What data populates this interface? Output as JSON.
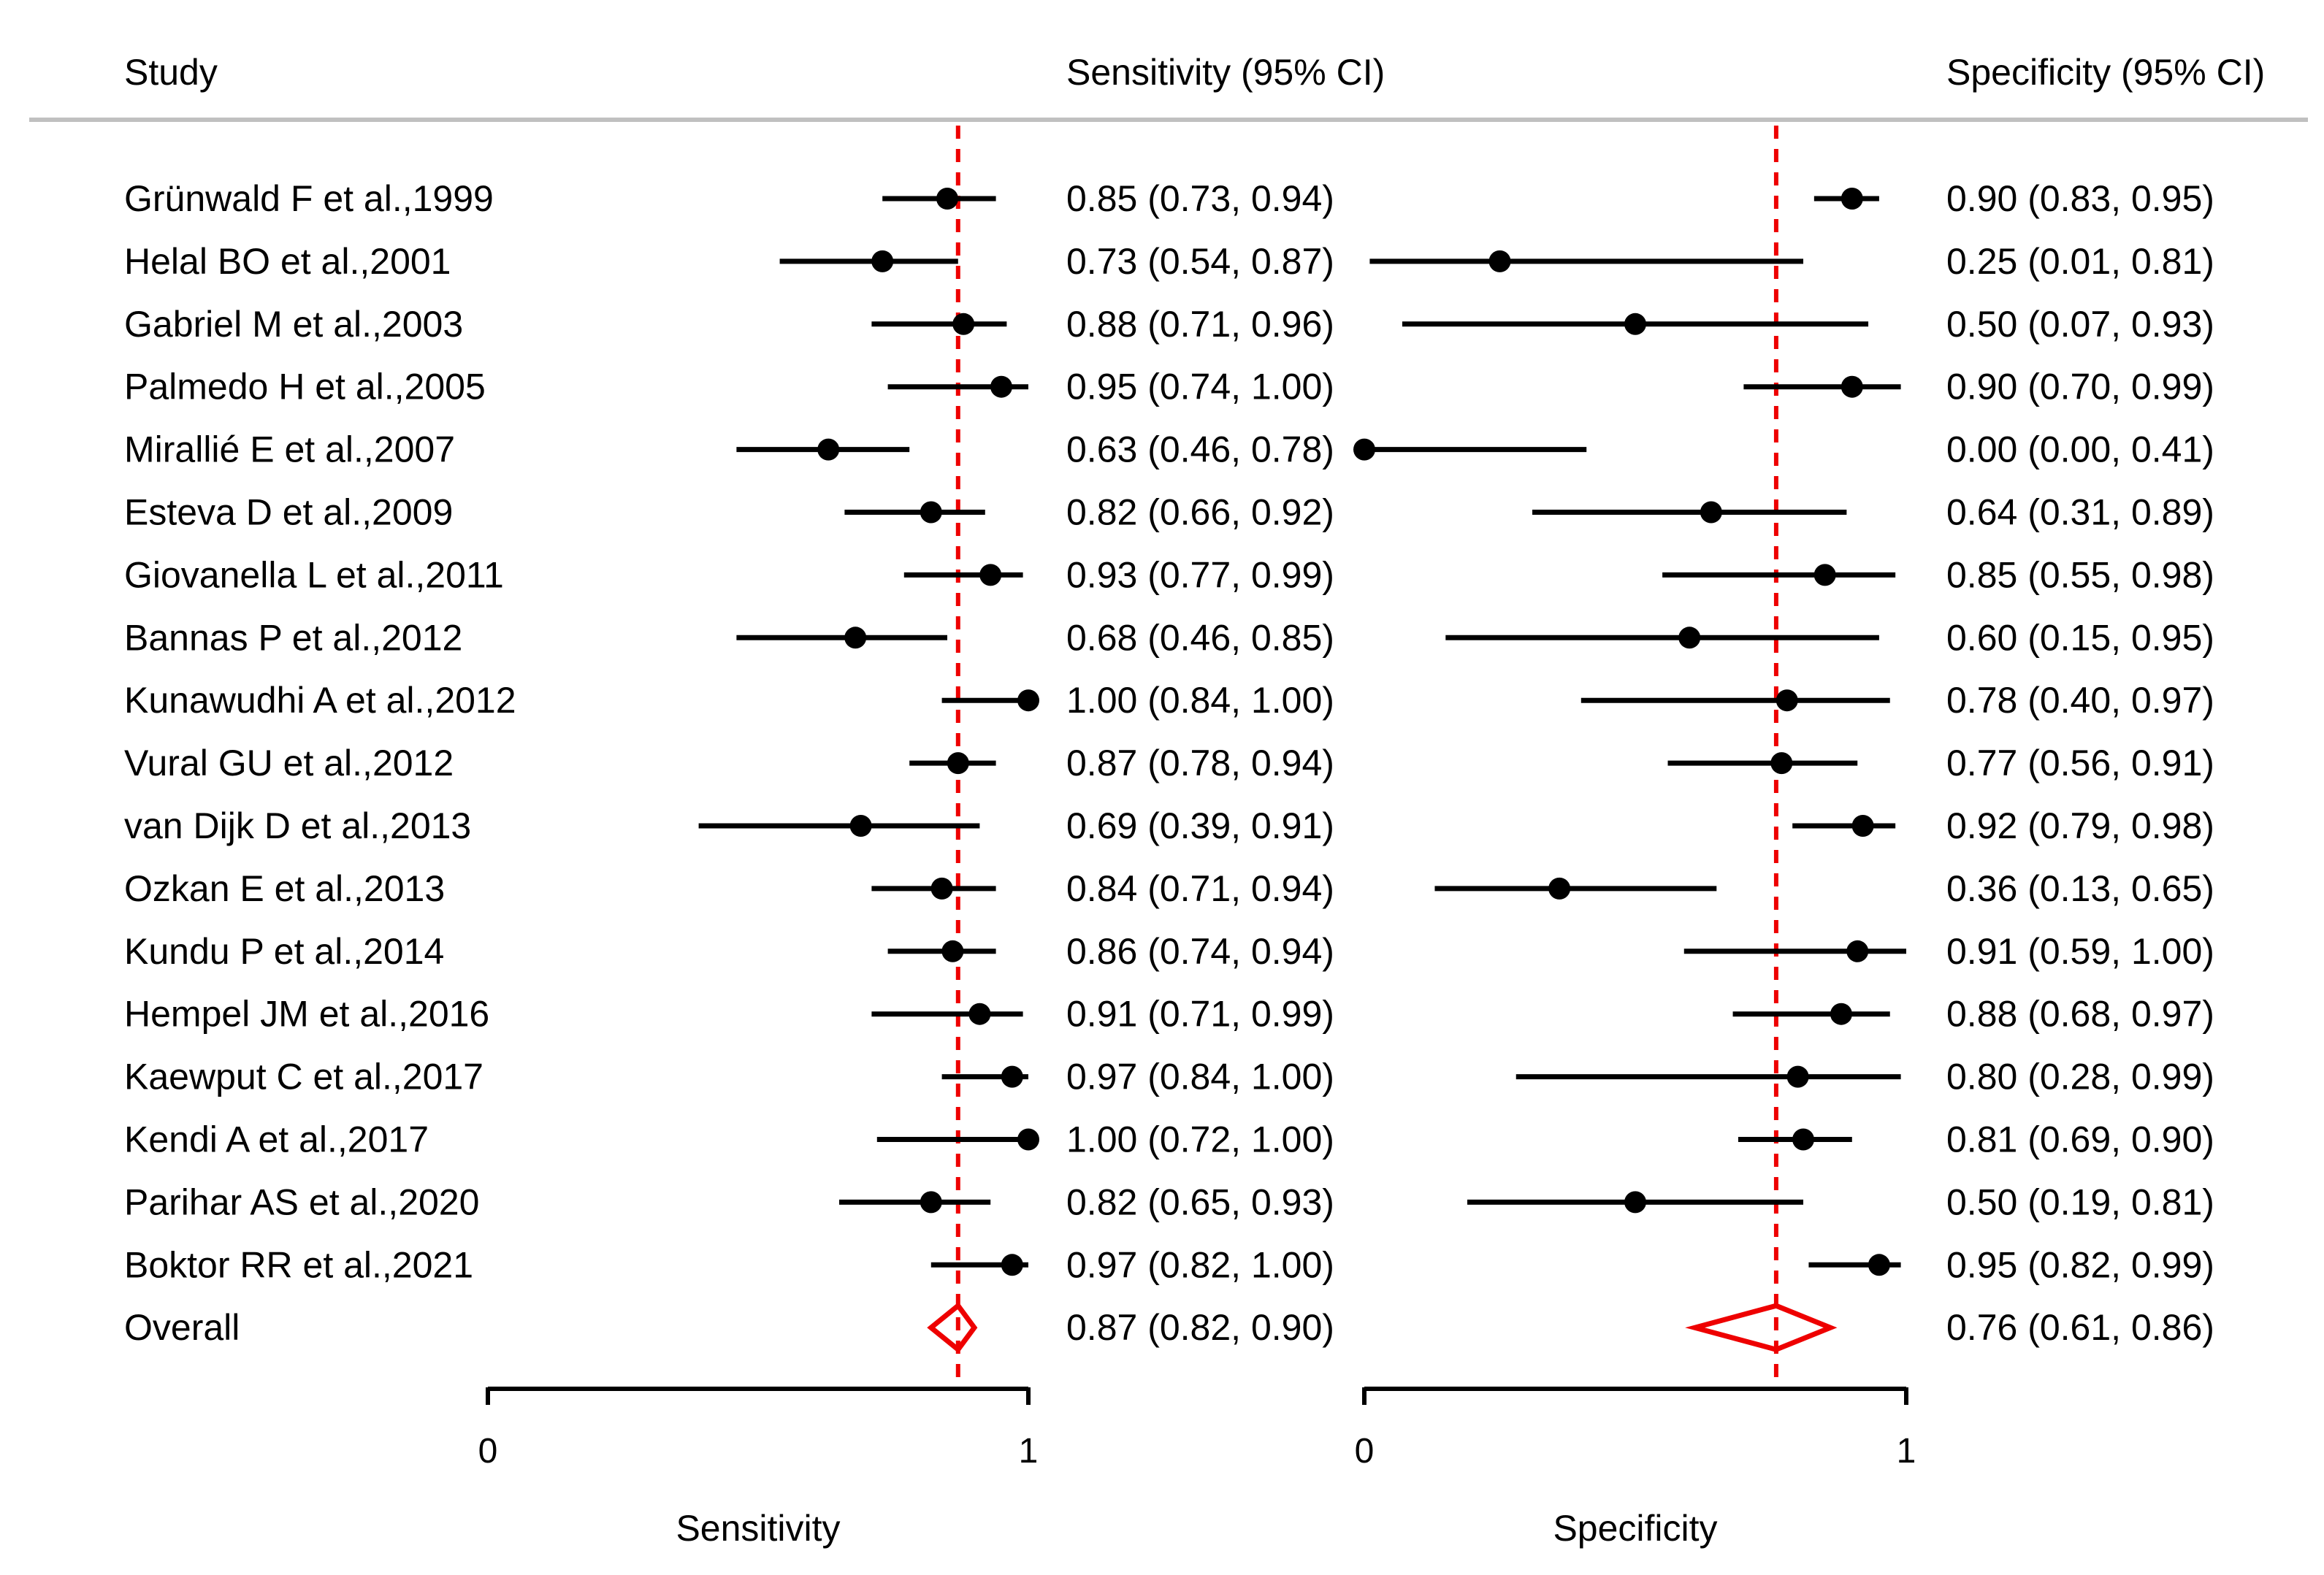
{
  "chart_data": {
    "type": "forest",
    "headers": {
      "study": "Study",
      "sensitivity": "Sensitivity (95% CI)",
      "specificity": "Specificity (95% CI)"
    },
    "studies": [
      {
        "name": "Grünwald F et al.,1999",
        "sens": 0.85,
        "sens_lo": 0.73,
        "sens_hi": 0.94,
        "sens_label": "0.85 (0.73, 0.94)",
        "spec": 0.9,
        "spec_lo": 0.83,
        "spec_hi": 0.95,
        "spec_label": "0.90 (0.83, 0.95)"
      },
      {
        "name": "Helal BO et al.,2001",
        "sens": 0.73,
        "sens_lo": 0.54,
        "sens_hi": 0.87,
        "sens_label": "0.73 (0.54, 0.87)",
        "spec": 0.25,
        "spec_lo": 0.01,
        "spec_hi": 0.81,
        "spec_label": "0.25 (0.01, 0.81)"
      },
      {
        "name": "Gabriel M et al.,2003",
        "sens": 0.88,
        "sens_lo": 0.71,
        "sens_hi": 0.96,
        "sens_label": "0.88 (0.71, 0.96)",
        "spec": 0.5,
        "spec_lo": 0.07,
        "spec_hi": 0.93,
        "spec_label": "0.50 (0.07, 0.93)"
      },
      {
        "name": "Palmedo H et al.,2005",
        "sens": 0.95,
        "sens_lo": 0.74,
        "sens_hi": 1.0,
        "sens_label": "0.95 (0.74, 1.00)",
        "spec": 0.9,
        "spec_lo": 0.7,
        "spec_hi": 0.99,
        "spec_label": "0.90 (0.70, 0.99)"
      },
      {
        "name": "Mirallié E et al.,2007",
        "sens": 0.63,
        "sens_lo": 0.46,
        "sens_hi": 0.78,
        "sens_label": "0.63 (0.46, 0.78)",
        "spec": 0.0,
        "spec_lo": 0.0,
        "spec_hi": 0.41,
        "spec_label": "0.00 (0.00, 0.41)"
      },
      {
        "name": "Esteva D et al.,2009",
        "sens": 0.82,
        "sens_lo": 0.66,
        "sens_hi": 0.92,
        "sens_label": "0.82 (0.66, 0.92)",
        "spec": 0.64,
        "spec_lo": 0.31,
        "spec_hi": 0.89,
        "spec_label": "0.64 (0.31, 0.89)"
      },
      {
        "name": "Giovanella L et al.,2011",
        "sens": 0.93,
        "sens_lo": 0.77,
        "sens_hi": 0.99,
        "sens_label": "0.93 (0.77, 0.99)",
        "spec": 0.85,
        "spec_lo": 0.55,
        "spec_hi": 0.98,
        "spec_label": "0.85 (0.55, 0.98)"
      },
      {
        "name": "Bannas P et al.,2012",
        "sens": 0.68,
        "sens_lo": 0.46,
        "sens_hi": 0.85,
        "sens_label": "0.68 (0.46, 0.85)",
        "spec": 0.6,
        "spec_lo": 0.15,
        "spec_hi": 0.95,
        "spec_label": "0.60 (0.15, 0.95)"
      },
      {
        "name": "Kunawudhi A et al.,2012",
        "sens": 1.0,
        "sens_lo": 0.84,
        "sens_hi": 1.0,
        "sens_label": "1.00 (0.84, 1.00)",
        "spec": 0.78,
        "spec_lo": 0.4,
        "spec_hi": 0.97,
        "spec_label": "0.78 (0.40, 0.97)"
      },
      {
        "name": "Vural GU et al.,2012",
        "sens": 0.87,
        "sens_lo": 0.78,
        "sens_hi": 0.94,
        "sens_label": "0.87 (0.78, 0.94)",
        "spec": 0.77,
        "spec_lo": 0.56,
        "spec_hi": 0.91,
        "spec_label": "0.77 (0.56, 0.91)"
      },
      {
        "name": "van Dijk D et al.,2013",
        "sens": 0.69,
        "sens_lo": 0.39,
        "sens_hi": 0.91,
        "sens_label": "0.69 (0.39, 0.91)",
        "spec": 0.92,
        "spec_lo": 0.79,
        "spec_hi": 0.98,
        "spec_label": "0.92 (0.79, 0.98)"
      },
      {
        "name": "Ozkan E et al.,2013",
        "sens": 0.84,
        "sens_lo": 0.71,
        "sens_hi": 0.94,
        "sens_label": "0.84 (0.71, 0.94)",
        "spec": 0.36,
        "spec_lo": 0.13,
        "spec_hi": 0.65,
        "spec_label": "0.36 (0.13, 0.65)"
      },
      {
        "name": "Kundu P et al.,2014",
        "sens": 0.86,
        "sens_lo": 0.74,
        "sens_hi": 0.94,
        "sens_label": "0.86 (0.74, 0.94)",
        "spec": 0.91,
        "spec_lo": 0.59,
        "spec_hi": 1.0,
        "spec_label": "0.91 (0.59, 1.00)"
      },
      {
        "name": "Hempel JM  et al.,2016",
        "sens": 0.91,
        "sens_lo": 0.71,
        "sens_hi": 0.99,
        "sens_label": "0.91 (0.71, 0.99)",
        "spec": 0.88,
        "spec_lo": 0.68,
        "spec_hi": 0.97,
        "spec_label": "0.88 (0.68, 0.97)"
      },
      {
        "name": "Kaewput C et al.,2017",
        "sens": 0.97,
        "sens_lo": 0.84,
        "sens_hi": 1.0,
        "sens_label": "0.97 (0.84, 1.00)",
        "spec": 0.8,
        "spec_lo": 0.28,
        "spec_hi": 0.99,
        "spec_label": "0.80 (0.28, 0.99)"
      },
      {
        "name": "Kendi A et al.,2017",
        "sens": 1.0,
        "sens_lo": 0.72,
        "sens_hi": 1.0,
        "sens_label": "1.00 (0.72, 1.00)",
        "spec": 0.81,
        "spec_lo": 0.69,
        "spec_hi": 0.9,
        "spec_label": "0.81 (0.69, 0.90)"
      },
      {
        "name": "Parihar AS et al.,2020",
        "sens": 0.82,
        "sens_lo": 0.65,
        "sens_hi": 0.93,
        "sens_label": "0.82 (0.65, 0.93)",
        "spec": 0.5,
        "spec_lo": 0.19,
        "spec_hi": 0.81,
        "spec_label": "0.50 (0.19, 0.81)"
      },
      {
        "name": "Boktor RR et al.,2021",
        "sens": 0.97,
        "sens_lo": 0.82,
        "sens_hi": 1.0,
        "sens_label": "0.97 (0.82, 1.00)",
        "spec": 0.95,
        "spec_lo": 0.82,
        "spec_hi": 0.99,
        "spec_label": "0.95 (0.82, 0.99)"
      }
    ],
    "overall": {
      "name": "Overall",
      "sens": 0.87,
      "sens_lo": 0.82,
      "sens_hi": 0.9,
      "sens_label": "0.87 (0.82, 0.90)",
      "spec": 0.76,
      "spec_lo": 0.61,
      "spec_hi": 0.86,
      "spec_label": "0.76 (0.61, 0.86)"
    },
    "axes": {
      "sensitivity": {
        "label": "Sensitivity",
        "range": [
          0,
          1
        ],
        "tick_labels": [
          "0",
          "1"
        ]
      },
      "specificity": {
        "label": "Specificity",
        "range": [
          0,
          1
        ],
        "tick_labels": [
          "0",
          "1"
        ]
      }
    },
    "colors": {
      "summary": "#ee0000",
      "points": "#000000",
      "header_rule": "#c0c0c0"
    }
  }
}
